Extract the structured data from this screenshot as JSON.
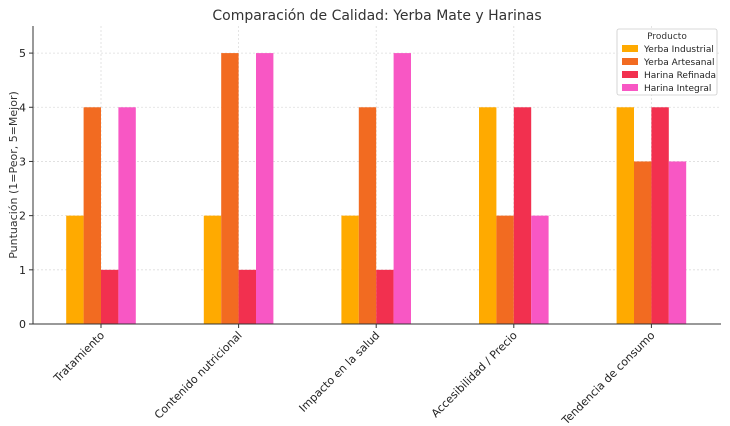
{
  "chart_data": {
    "type": "bar",
    "title": "Comparación de Calidad: Yerba Mate y Harinas",
    "xlabel": "",
    "ylabel": "Puntuación (1=Peor, 5=Mejor)",
    "ylim": [
      0,
      5.5
    ],
    "yticks": [
      0,
      1,
      2,
      3,
      4,
      5
    ],
    "grid": true,
    "legend": {
      "title": "Producto",
      "placement": "top-right"
    },
    "categories": [
      "Tratamiento",
      "Contenido nutricional",
      "Impacto en la salud",
      "Accesibilidad / Precio",
      "Tendencia de consumo"
    ],
    "series": [
      {
        "name": "Yerba Industrial",
        "color": "#FFAA00",
        "values": [
          2,
          2,
          2,
          4,
          4
        ]
      },
      {
        "name": "Yerba Artesanal",
        "color": "#F26B21",
        "values": [
          4,
          5,
          4,
          2,
          3
        ]
      },
      {
        "name": "Harina Refinada",
        "color": "#F2304F",
        "values": [
          1,
          1,
          1,
          4,
          4
        ]
      },
      {
        "name": "Harina Integral",
        "color": "#F857C4",
        "values": [
          4,
          5,
          5,
          2,
          3
        ]
      }
    ]
  }
}
